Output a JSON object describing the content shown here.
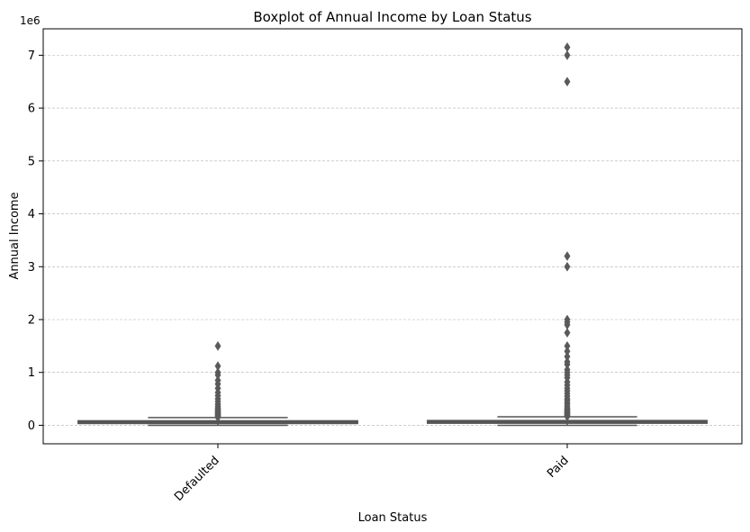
{
  "chart_data": {
    "type": "box",
    "title": "Boxplot of Annual Income by Loan Status",
    "xlabel": "Loan Status",
    "ylabel": "Annual Income",
    "y_multiplier_label": "1e6",
    "categories": [
      "Defaulted",
      "Paid"
    ],
    "ylim": [
      -350000,
      7500000
    ],
    "yticks": [
      0,
      1,
      2,
      3,
      4,
      5,
      6,
      7
    ],
    "ytick_scale": 1000000,
    "grid": "horizontal dashed",
    "boxes": [
      {
        "category": "Defaulted",
        "q1": 45000,
        "median": 62000,
        "q3": 85000,
        "whisker_low": 0,
        "whisker_high": 145000,
        "outliers": [
          150000,
          165000,
          180000,
          195000,
          210000,
          225000,
          240000,
          255000,
          270000,
          290000,
          310000,
          330000,
          360000,
          400000,
          450000,
          500000,
          560000,
          620000,
          700000,
          780000,
          850000,
          950000,
          1000000,
          1120000,
          1500000
        ]
      },
      {
        "category": "Paid",
        "q1": 45000,
        "median": 65000,
        "q3": 90000,
        "whisker_low": 0,
        "whisker_high": 160000,
        "outliers": [
          165000,
          180000,
          195000,
          210000,
          225000,
          240000,
          255000,
          270000,
          290000,
          310000,
          330000,
          360000,
          400000,
          430000,
          470000,
          500000,
          550000,
          600000,
          650000,
          700000,
          760000,
          820000,
          900000,
          950000,
          1000000,
          1050000,
          1150000,
          1200000,
          1300000,
          1400000,
          1500000,
          1750000,
          1900000,
          1950000,
          2000000,
          3000000,
          3200000,
          6500000,
          7000000,
          7150000
        ]
      }
    ],
    "colors": {
      "box": "#555555",
      "outlier": "#5a5a5a",
      "grid": "#b0b0b0"
    }
  }
}
